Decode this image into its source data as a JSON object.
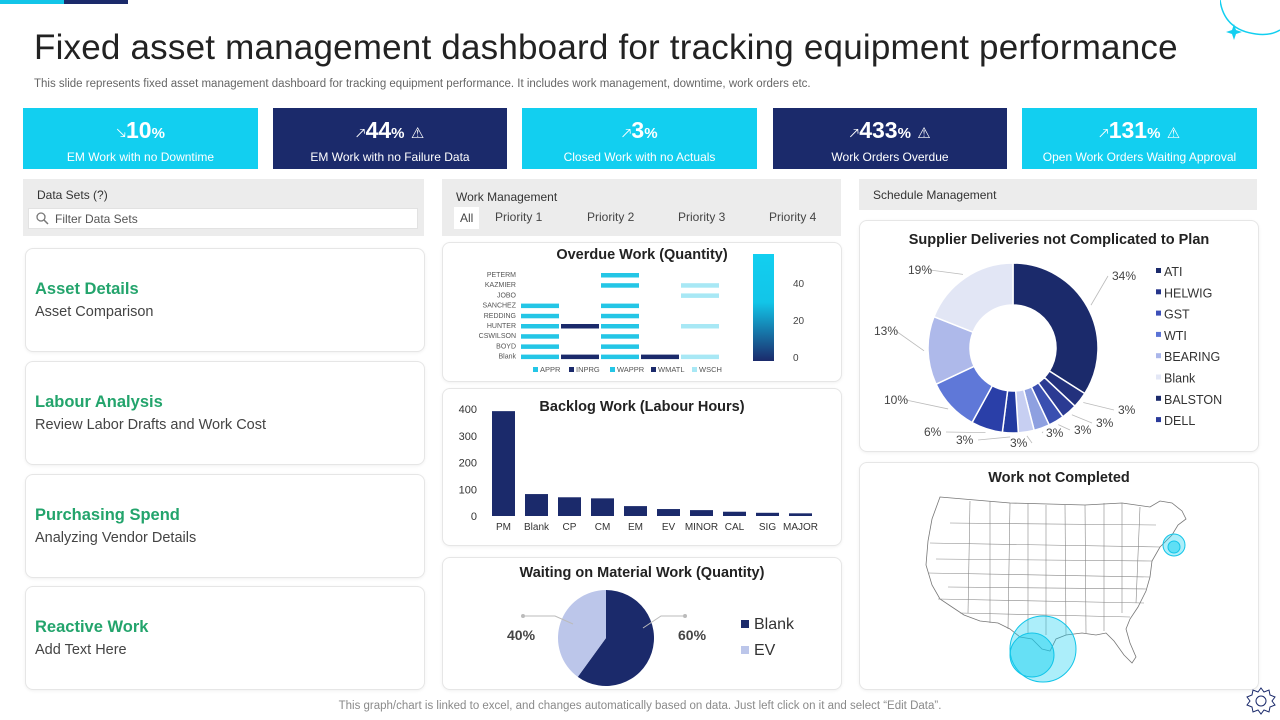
{
  "header": {
    "title": "Fixed asset management  dashboard for tracking equipment performance",
    "subtitle": "This slide represents fixed asset management dashboard for tracking equipment performance. It includes work management, downtime, work orders etc."
  },
  "kpis": [
    {
      "value": "10",
      "unit": "%",
      "arrow": "down",
      "warning": false,
      "label": "EM Work with no Downtime",
      "color": "#12cff0"
    },
    {
      "value": "44",
      "unit": "%",
      "arrow": "up",
      "warning": true,
      "label": "EM Work with no Failure Data",
      "color": "#1b2a6b"
    },
    {
      "value": "3",
      "unit": "%",
      "arrow": "up",
      "warning": false,
      "label": "Closed Work with no Actuals",
      "color": "#12cff0"
    },
    {
      "value": "433",
      "unit": "%",
      "arrow": "up",
      "warning": true,
      "label": "Work Orders Overdue",
      "color": "#1b2a6b"
    },
    {
      "value": "131",
      "unit": "%",
      "arrow": "up",
      "warning": true,
      "label": "Open Work Orders Waiting Approval",
      "color": "#12cff0"
    }
  ],
  "datasets": {
    "heading": "Data Sets (?)",
    "search_placeholder": "Filter Data Sets",
    "cards": [
      {
        "title": "Asset Details",
        "subtitle": "Asset Comparison"
      },
      {
        "title": "Labour Analysis",
        "subtitle": "Review Labor Drafts and Work Cost"
      },
      {
        "title": "Purchasing Spend",
        "subtitle": "Analyzing Vendor Details"
      },
      {
        "title": "Reactive Work",
        "subtitle": "Add Text Here"
      }
    ]
  },
  "work_management": {
    "heading": "Work Management",
    "tabs": [
      "All",
      "Priority 1",
      "Priority 2",
      "Priority 3",
      "Priority 4"
    ],
    "active_tab": "All"
  },
  "schedule_management": {
    "heading": "Schedule Management",
    "map_title": "Work not Completed"
  },
  "footer": "This graph/chart is linked to excel,  and changes automatically based on data. Just left click on it and select “Edit Data”.",
  "colors": {
    "cyan": "#12cff0",
    "navy": "#1b2a6b",
    "green": "#23a46c"
  },
  "chart_data": [
    {
      "id": "overdue",
      "type": "heatmap",
      "title": "Overdue Work (Quantity)",
      "rows": [
        "PETERM",
        "KAZMIER",
        "JOBO",
        "SANCHEZ",
        "REDDING",
        "HUNTER",
        "CSWILSON",
        "BOYD",
        "Blank"
      ],
      "columns": [
        "APPR",
        "INPRG",
        "WAPPR",
        "WMATL",
        "WSCH"
      ],
      "column_colors": [
        "#24c6e6",
        "#1b2a6b",
        "#24c6e6",
        "#1b2a6b",
        "#a8e8f5"
      ],
      "cells": [
        [
          0,
          0,
          1,
          0,
          0
        ],
        [
          0,
          0,
          1,
          0,
          1
        ],
        [
          0,
          0,
          0,
          0,
          1
        ],
        [
          1,
          0,
          1,
          0,
          0
        ],
        [
          1,
          0,
          1,
          0,
          0
        ],
        [
          1,
          1,
          1,
          0,
          1
        ],
        [
          1,
          0,
          1,
          0,
          0
        ],
        [
          1,
          0,
          1,
          0,
          0
        ],
        [
          1,
          1,
          1,
          1,
          1
        ]
      ],
      "colorbar_ticks": [
        40,
        20,
        0
      ]
    },
    {
      "id": "backlog",
      "type": "bar",
      "title": "Backlog Work (Labour Hours)",
      "categories": [
        "PM",
        "Blank",
        "CP",
        "CM",
        "EM",
        "EV",
        "MINOR",
        "CAL",
        "SIG",
        "MAJOR"
      ],
      "values": [
        392,
        82,
        70,
        66,
        37,
        26,
        22,
        16,
        12,
        10
      ],
      "ylim": [
        0,
        400
      ],
      "yticks": [
        0,
        100,
        200,
        300,
        400
      ],
      "color": "#1b2a6b"
    },
    {
      "id": "waiting",
      "type": "pie",
      "title": "Waiting on Material Work (Quantity)",
      "labels": [
        "Blank",
        "EV"
      ],
      "values": [
        60,
        40
      ],
      "value_labels": [
        "60%",
        "40%"
      ],
      "colors": [
        "#1b2a6b",
        "#bcc6ea"
      ]
    },
    {
      "id": "supplier",
      "type": "pie",
      "title": "Supplier Deliveries not Complicated to Plan",
      "labels": [
        "ATI",
        "HELWIG",
        "GST",
        "WTI",
        "BEARING",
        "Blank",
        "BALSTON",
        "DELL"
      ],
      "legend_colors": [
        "#1b2a6b",
        "#25348a",
        "#3c4fb8",
        "#5a73d6",
        "#aab6ea",
        "#e3e7f6",
        "#1b2a6b",
        "#2a3a9a"
      ],
      "slice_values": [
        34,
        3,
        3,
        3,
        3,
        3,
        3,
        6,
        10,
        13,
        19
      ],
      "slice_labels": [
        "34%",
        "3%",
        "3%",
        "3%",
        "3%",
        "3%",
        "3%",
        "6%",
        "10%",
        "13%",
        "19%"
      ],
      "slice_colors": [
        "#1b2a6b",
        "#23317d",
        "#2b3b93",
        "#3a4fb0",
        "#8ea0e0",
        "#c7cff2",
        "#223aa0",
        "#2a3fa8",
        "#5f78d8",
        "#aeb9ea",
        "#e2e6f5"
      ]
    }
  ]
}
